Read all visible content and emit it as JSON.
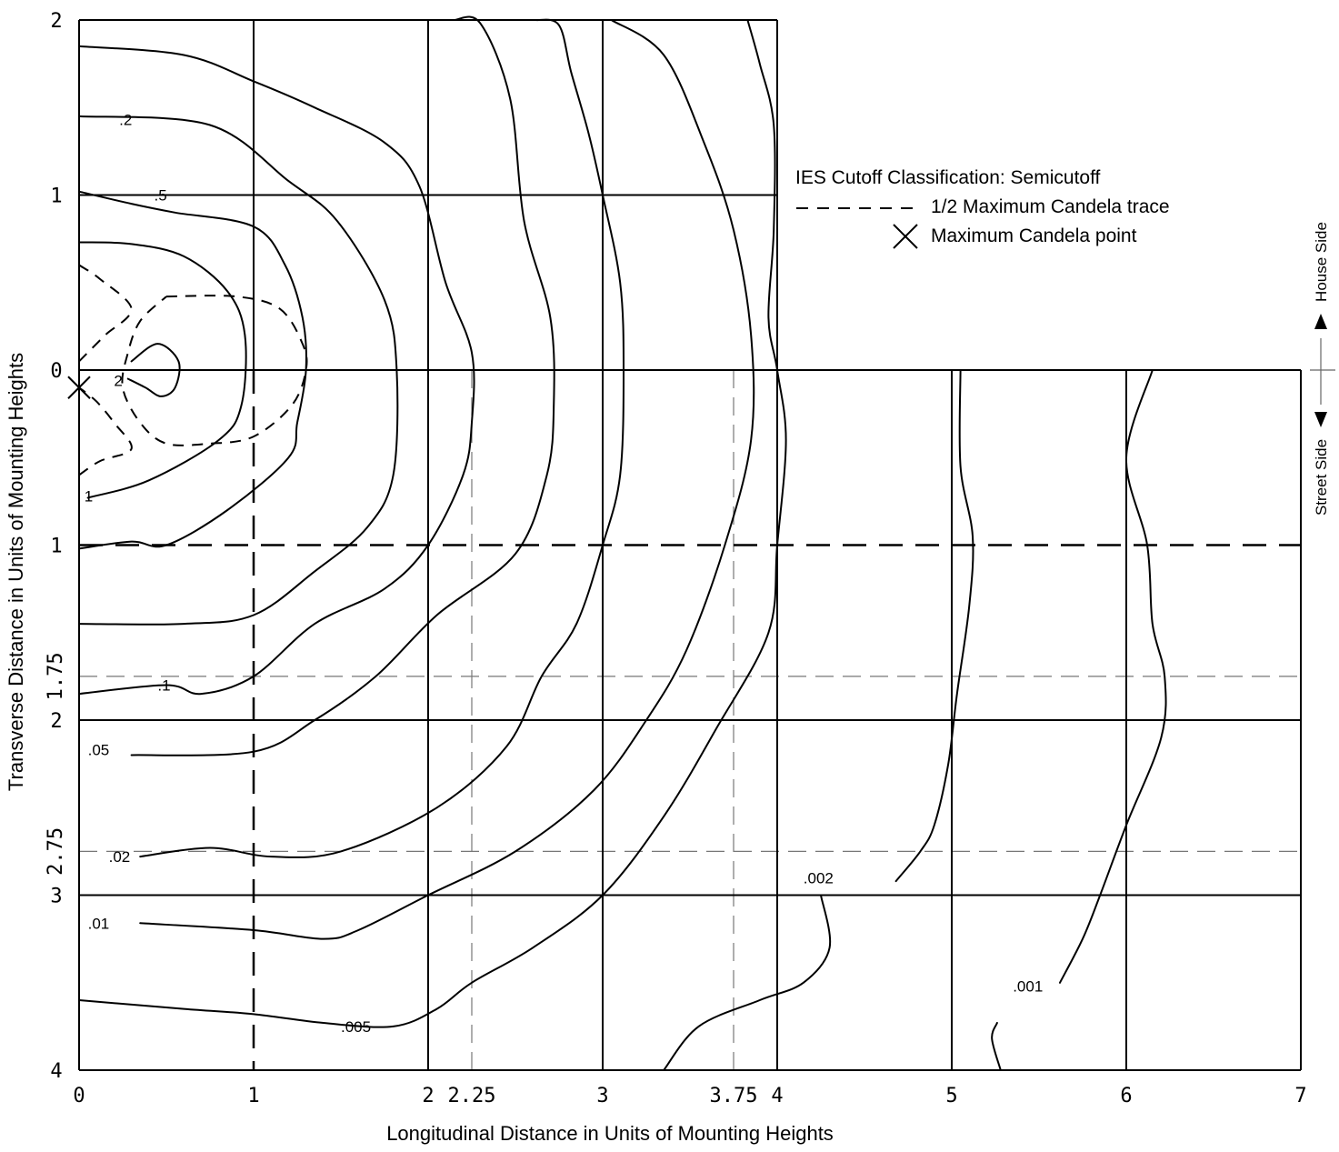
{
  "chart_data": {
    "type": "isofootcandle",
    "xlabel": "Longitudinal Distance in Units of Mounting Heights",
    "ylabel": "Transverse Distance in Units of Mounting Heights",
    "x_ticks": [
      "0",
      "1",
      "2",
      "2.25",
      "3",
      "3.75",
      "4",
      "5",
      "6",
      "7"
    ],
    "y_ticks_house": [
      "2",
      "1",
      "0"
    ],
    "y_ticks_street": [
      "1",
      "1.75",
      "2",
      "2.75",
      "3",
      "4"
    ],
    "xlim": [
      0,
      7
    ],
    "ylim_house": [
      0,
      2
    ],
    "ylim_street": [
      0,
      4
    ],
    "grid": true,
    "legend": {
      "position": "top-right",
      "classification": "IES Cutoff Classification:  Semicutoff",
      "trace_label": "1/2 Maximum Candela trace",
      "max_point_label": "Maximum Candela point"
    },
    "side_labels": {
      "house": "House Side",
      "street": "Street Side"
    },
    "contour_labels": [
      "2",
      "1",
      ".5",
      ".2",
      ".1",
      ".05",
      ".02",
      ".01",
      ".005",
      ".002",
      ".001"
    ],
    "max_candela_point": {
      "x": 0.0,
      "y": -0.1
    },
    "contours": [
      {
        "label": "2",
        "points": [
          [
            0.3,
            0.05
          ],
          [
            0.45,
            0.15
          ],
          [
            0.57,
            0.05
          ],
          [
            0.55,
            -0.1
          ],
          [
            0.47,
            -0.15
          ],
          [
            0.38,
            -0.1
          ],
          [
            0.28,
            -0.05
          ]
        ]
      },
      {
        "label": "1",
        "points": [
          [
            0.05,
            -0.73
          ],
          [
            0.4,
            -0.63
          ],
          [
            0.8,
            -0.4
          ],
          [
            0.93,
            -0.2
          ],
          [
            0.95,
            0.2
          ],
          [
            0.85,
            0.45
          ],
          [
            0.6,
            0.65
          ],
          [
            0.3,
            0.72
          ],
          [
            0,
            0.73
          ]
        ]
      },
      {
        "label": ".5",
        "points": [
          [
            0,
            1.02
          ],
          [
            0.3,
            0.95
          ],
          [
            0.55,
            0.9
          ],
          [
            1.0,
            0.82
          ],
          [
            1.18,
            0.6
          ],
          [
            1.28,
            0.3
          ],
          [
            1.3,
            0.0
          ],
          [
            1.25,
            -0.3
          ],
          [
            1.2,
            -0.5
          ],
          [
            0.85,
            -0.8
          ],
          [
            0.5,
            -1.0
          ],
          [
            0.3,
            -0.98
          ],
          [
            0,
            -1.02
          ]
        ]
      },
      {
        "label": ".2",
        "points": [
          [
            0,
            1.45
          ],
          [
            0.75,
            1.4
          ],
          [
            1.2,
            1.08
          ],
          [
            1.48,
            0.85
          ],
          [
            1.75,
            0.4
          ],
          [
            1.82,
            0
          ],
          [
            1.8,
            -0.6
          ],
          [
            1.65,
            -0.9
          ],
          [
            1.35,
            -1.15
          ],
          [
            1.0,
            -1.4
          ],
          [
            0.6,
            -1.45
          ],
          [
            0,
            -1.45
          ]
        ]
      },
      {
        "label": ".1",
        "points": [
          [
            0,
            -1.85
          ],
          [
            0.5,
            -1.8
          ],
          [
            0.7,
            -1.85
          ],
          [
            1.0,
            -1.75
          ],
          [
            1.35,
            -1.45
          ],
          [
            1.75,
            -1.25
          ],
          [
            2.0,
            -1.0
          ],
          [
            2.2,
            -0.6
          ],
          [
            2.25,
            -0.3
          ],
          [
            2.25,
            0.1
          ],
          [
            2.1,
            0.5
          ],
          [
            1.95,
            1.05
          ],
          [
            1.75,
            1.3
          ],
          [
            1.35,
            1.5
          ],
          [
            1.0,
            1.65
          ],
          [
            0.6,
            1.8
          ],
          [
            0,
            1.85
          ]
        ]
      },
      {
        "label": ".05",
        "points": [
          [
            0.3,
            -2.2
          ],
          [
            1.0,
            -2.18
          ],
          [
            1.35,
            -2.0
          ],
          [
            1.7,
            -1.75
          ],
          [
            2.05,
            -1.4
          ],
          [
            2.5,
            -1.05
          ],
          [
            2.68,
            -0.6
          ],
          [
            2.72,
            -0.2
          ],
          [
            2.7,
            0.3
          ],
          [
            2.55,
            0.85
          ],
          [
            2.47,
            1.55
          ],
          [
            2.3,
            1.98
          ],
          [
            2.15,
            2.0
          ]
        ]
      },
      {
        "label": ".02",
        "points": [
          [
            0.35,
            -2.78
          ],
          [
            0.75,
            -2.73
          ],
          [
            1.1,
            -2.78
          ],
          [
            1.5,
            -2.75
          ],
          [
            2.05,
            -2.5
          ],
          [
            2.45,
            -2.15
          ],
          [
            2.65,
            -1.75
          ],
          [
            2.85,
            -1.45
          ],
          [
            3.0,
            -1.0
          ],
          [
            3.1,
            -0.6
          ],
          [
            3.12,
            0.0
          ],
          [
            3.1,
            0.5
          ],
          [
            3.0,
            1.0
          ],
          [
            2.92,
            1.35
          ],
          [
            2.82,
            1.7
          ],
          [
            2.75,
            1.97
          ],
          [
            2.62,
            2.0
          ]
        ]
      },
      {
        "label": ".01",
        "points": [
          [
            0.35,
            -3.16
          ],
          [
            1.0,
            -3.2
          ],
          [
            1.4,
            -3.25
          ],
          [
            1.6,
            -3.2
          ],
          [
            2.0,
            -3.0
          ],
          [
            2.5,
            -2.75
          ],
          [
            2.95,
            -2.4
          ],
          [
            3.25,
            -2.0
          ],
          [
            3.48,
            -1.6
          ],
          [
            3.7,
            -1.0
          ],
          [
            3.85,
            -0.4
          ],
          [
            3.85,
            0.2
          ],
          [
            3.75,
            0.8
          ],
          [
            3.58,
            1.3
          ],
          [
            3.35,
            1.8
          ],
          [
            3.05,
            2.0
          ]
        ]
      },
      {
        "label": ".005",
        "points": [
          [
            0,
            -3.6
          ],
          [
            0.6,
            -3.65
          ],
          [
            1.0,
            -3.68
          ],
          [
            1.4,
            -3.73
          ],
          [
            1.8,
            -3.75
          ],
          [
            2.05,
            -3.65
          ],
          [
            2.25,
            -3.5
          ],
          [
            2.6,
            -3.3
          ],
          [
            3.0,
            -3.0
          ],
          [
            3.35,
            -2.55
          ],
          [
            3.65,
            -2.05
          ],
          [
            3.95,
            -1.5
          ],
          [
            4.0,
            -1.0
          ],
          [
            4.05,
            -0.4
          ],
          [
            4.0,
            0.0
          ],
          [
            3.95,
            0.3
          ],
          [
            3.98,
            0.8
          ],
          [
            3.98,
            1.4
          ],
          [
            3.9,
            1.75
          ],
          [
            3.83,
            2.0
          ]
        ]
      },
      {
        "label": ".002",
        "points": [
          [
            4.25,
            -3.0
          ],
          [
            4.3,
            -3.3
          ],
          [
            4.15,
            -3.5
          ],
          [
            3.9,
            -3.6
          ],
          [
            3.55,
            -3.75
          ],
          [
            3.35,
            -4.0
          ]
        ]
      },
      {
        "label": ".002",
        "points": [
          [
            4.68,
            -2.92
          ],
          [
            4.82,
            -2.75
          ],
          [
            4.9,
            -2.6
          ],
          [
            4.98,
            -2.25
          ],
          [
            5.03,
            -1.85
          ],
          [
            5.1,
            -1.35
          ],
          [
            5.12,
            -0.95
          ],
          [
            5.05,
            -0.55
          ],
          [
            5.05,
            0.0
          ]
        ]
      },
      {
        "label": ".001",
        "points": [
          [
            5.28,
            -4.0
          ],
          [
            5.23,
            -3.82
          ],
          [
            5.26,
            -3.73
          ]
        ]
      },
      {
        "label": ".001",
        "points": [
          [
            5.62,
            -3.5
          ],
          [
            5.75,
            -3.25
          ],
          [
            5.85,
            -3.0
          ],
          [
            6.0,
            -2.6
          ],
          [
            6.2,
            -2.1
          ],
          [
            6.22,
            -1.75
          ],
          [
            6.15,
            -1.45
          ],
          [
            6.12,
            -1.0
          ],
          [
            6.0,
            -0.5
          ],
          [
            6.15,
            0.0
          ]
        ]
      }
    ],
    "half_max_trace": [
      {
        "points": [
          [
            0.5,
            0.42
          ],
          [
            0.9,
            0.42
          ],
          [
            1.15,
            0.35
          ],
          [
            1.28,
            0.15
          ],
          [
            1.3,
            0.0
          ],
          [
            1.22,
            -0.2
          ],
          [
            1.0,
            -0.38
          ],
          [
            0.75,
            -0.42
          ],
          [
            0.5,
            -0.42
          ],
          [
            0.35,
            -0.3
          ],
          [
            0.25,
            -0.1
          ],
          [
            0.28,
            0.1
          ],
          [
            0.35,
            0.28
          ],
          [
            0.5,
            0.42
          ]
        ]
      },
      {
        "points": [
          [
            0,
            0.6
          ],
          [
            0.12,
            0.52
          ],
          [
            0.3,
            0.35
          ],
          [
            0.15,
            0.2
          ],
          [
            0.05,
            0.1
          ],
          [
            0,
            0.05
          ]
        ]
      },
      {
        "points": [
          [
            0,
            -0.6
          ],
          [
            0.12,
            -0.52
          ],
          [
            0.3,
            -0.45
          ],
          [
            0.2,
            -0.3
          ],
          [
            0.1,
            -0.18
          ],
          [
            0,
            -0.1
          ]
        ]
      }
    ]
  }
}
